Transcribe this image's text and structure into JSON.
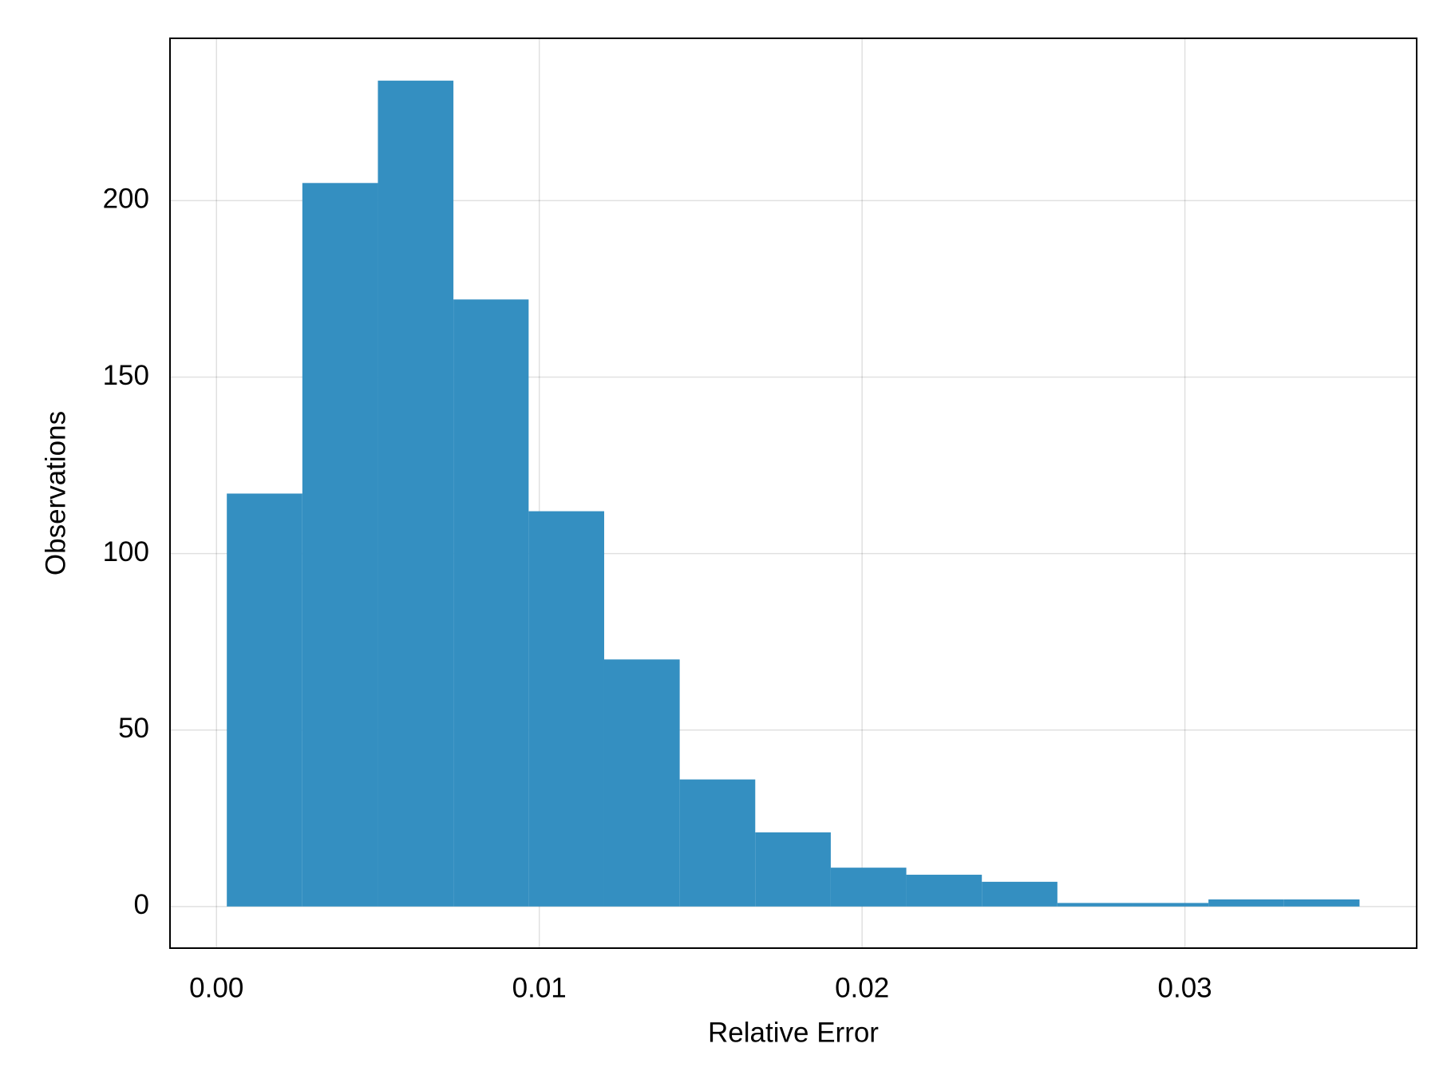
{
  "chart_data": {
    "type": "histogram",
    "xlabel": "Relative Error",
    "ylabel": "Observations",
    "bins": [
      0.00032,
      0.00266,
      0.005,
      0.00734,
      0.00967,
      0.01201,
      0.01435,
      0.01669,
      0.01903,
      0.02137,
      0.02371,
      0.02605,
      0.02839,
      0.03073,
      0.03307,
      0.03541
    ],
    "counts": [
      117,
      205,
      234,
      172,
      112,
      70,
      36,
      21,
      11,
      9,
      7,
      1,
      1,
      2,
      2
    ],
    "color": "#348fc1",
    "xlim": [
      -0.00144,
      0.03718
    ],
    "ylim": [
      -11.8,
      246
    ],
    "xticks": [
      {
        "value": 0,
        "label": "0.00"
      },
      0.01,
      0.02,
      0.03
    ],
    "yticks": [
      0,
      50,
      100,
      150,
      200
    ],
    "grid": true
  }
}
